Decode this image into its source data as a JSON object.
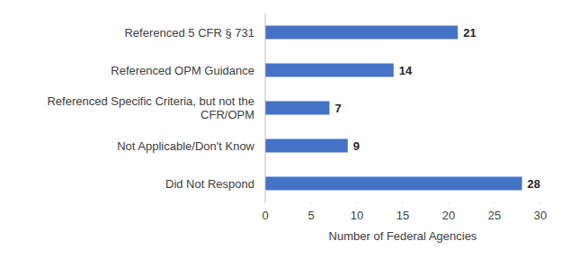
{
  "chart_data": {
    "type": "bar",
    "orientation": "horizontal",
    "categories": [
      "Referenced 5 CFR § 731",
      "Referenced OPM Guidance",
      "Referenced Specific Criteria, but not the CFR/OPM",
      "Not Applicable/Don't Know",
      "Did Not Respond"
    ],
    "values": [
      21,
      14,
      7,
      9,
      28
    ],
    "color": "#4472c4",
    "x_label": "Number of Federal Agencies",
    "xlim": [
      0,
      30
    ],
    "xticks": [
      0,
      5,
      10,
      15,
      20,
      25,
      30
    ],
    "grid": false,
    "data_labels": true
  }
}
